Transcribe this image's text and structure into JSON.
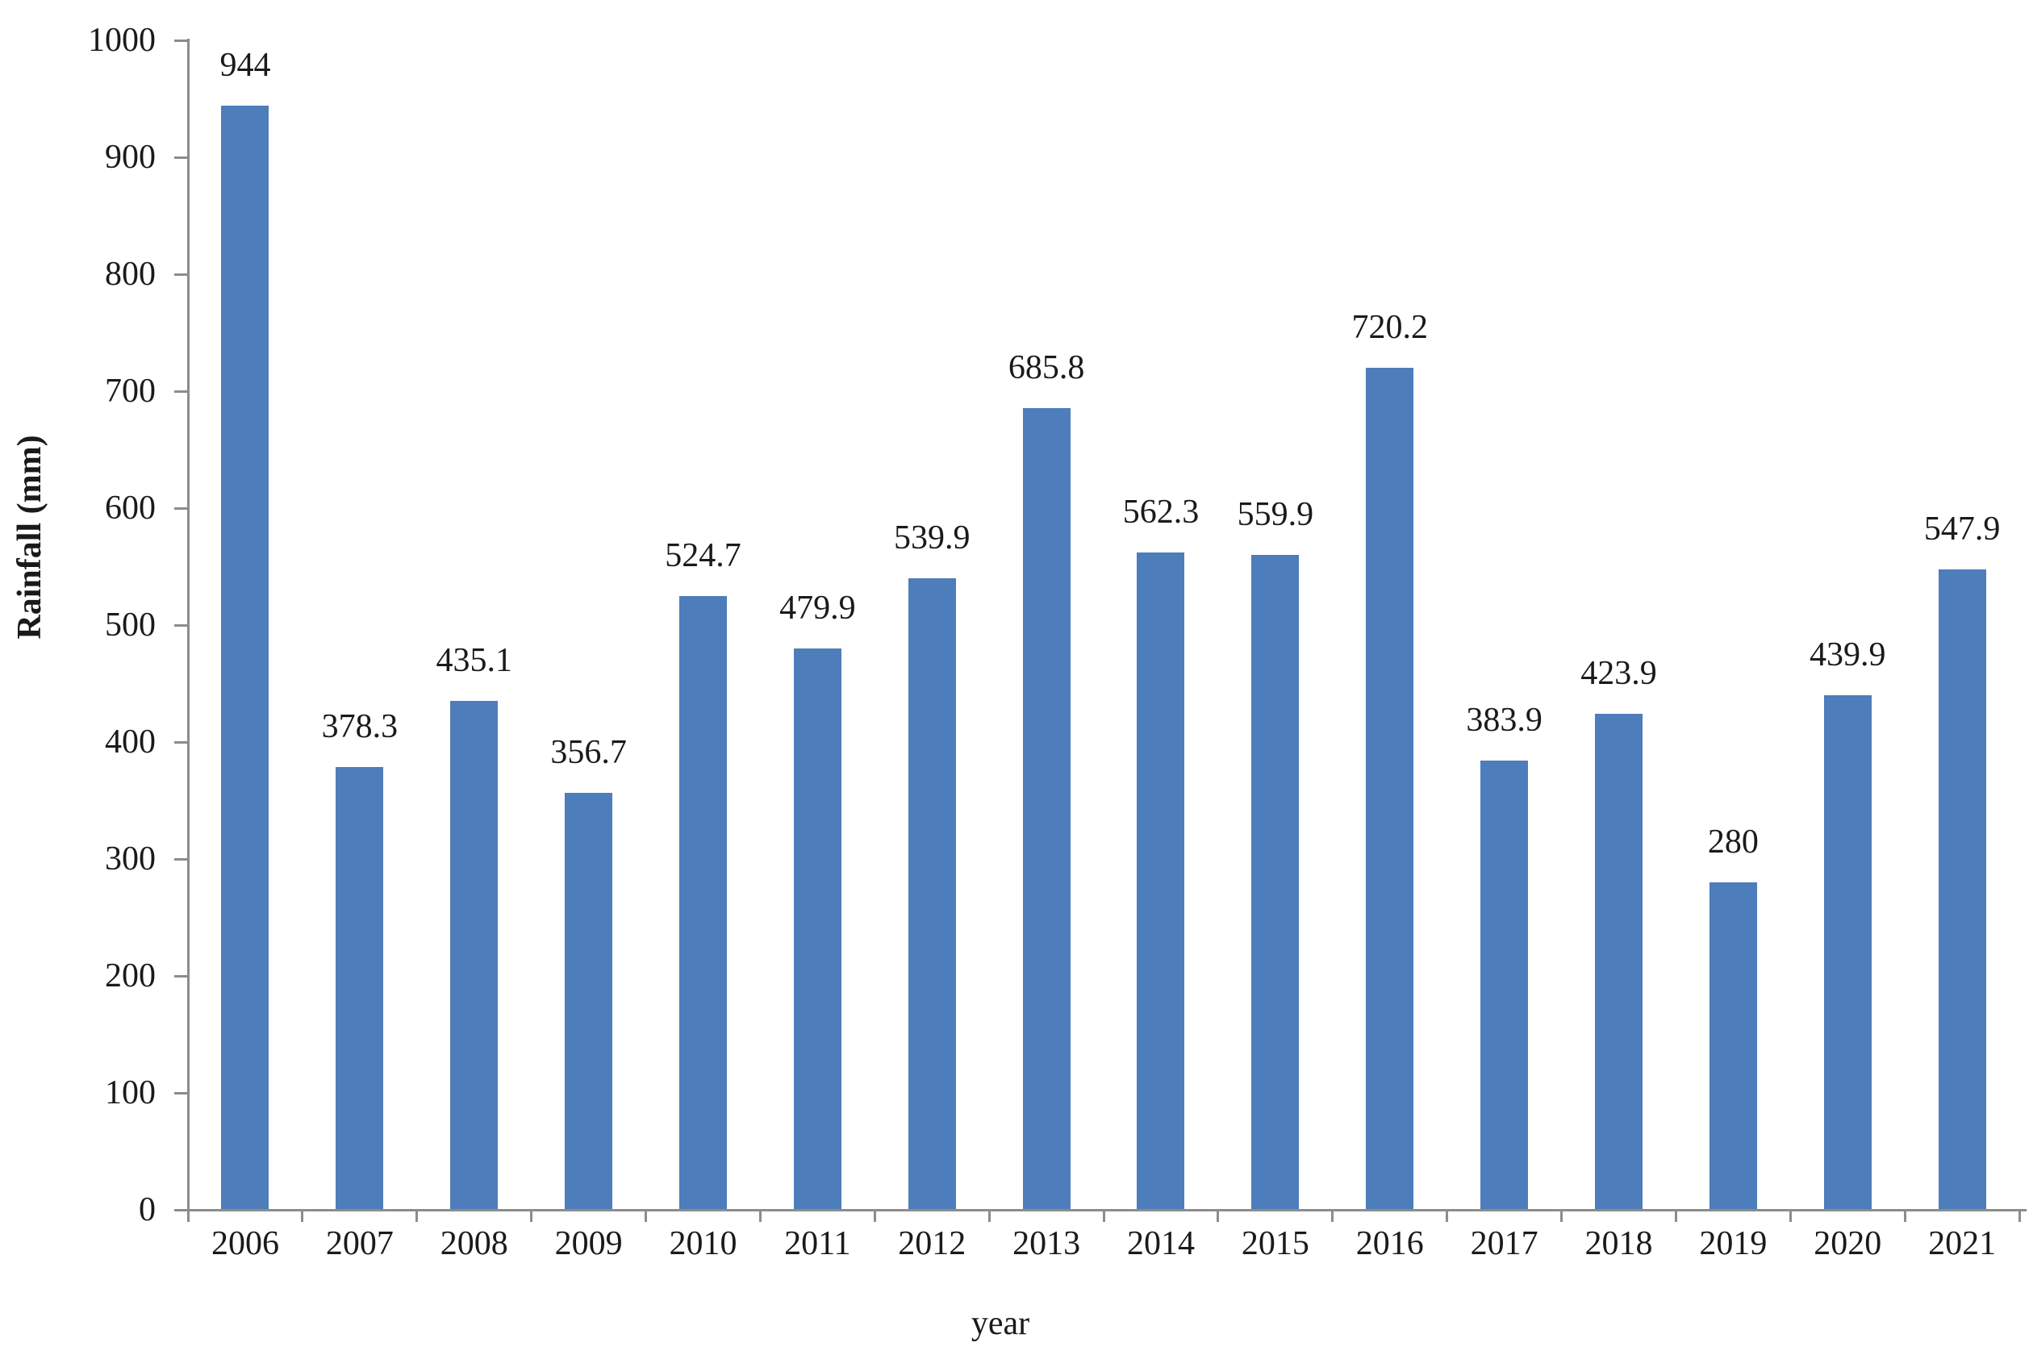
{
  "chart_data": {
    "type": "bar",
    "title": "",
    "xlabel": "year",
    "ylabel": "Rainfall (mm)",
    "categories": [
      "2006",
      "2007",
      "2008",
      "2009",
      "2010",
      "2011",
      "2012",
      "2013",
      "2014",
      "2015",
      "2016",
      "2017",
      "2018",
      "2019",
      "2020",
      "2021"
    ],
    "values": [
      944,
      378.3,
      435.1,
      356.7,
      524.7,
      479.9,
      539.9,
      685.8,
      562.3,
      559.9,
      720.2,
      383.9,
      423.9,
      280,
      439.9,
      547.9
    ],
    "ylim": [
      0,
      1000
    ],
    "ytick_step": 100,
    "ytick_labels": [
      "0",
      "100",
      "200",
      "300",
      "400",
      "500",
      "600",
      "700",
      "800",
      "900",
      "1000"
    ],
    "grid": false,
    "legend": false,
    "data_labels_shown": true,
    "colors": {
      "bar_fill": "#4D7DBB",
      "axis_line": "#8C8C8C",
      "text": "#1A1A1A"
    }
  }
}
